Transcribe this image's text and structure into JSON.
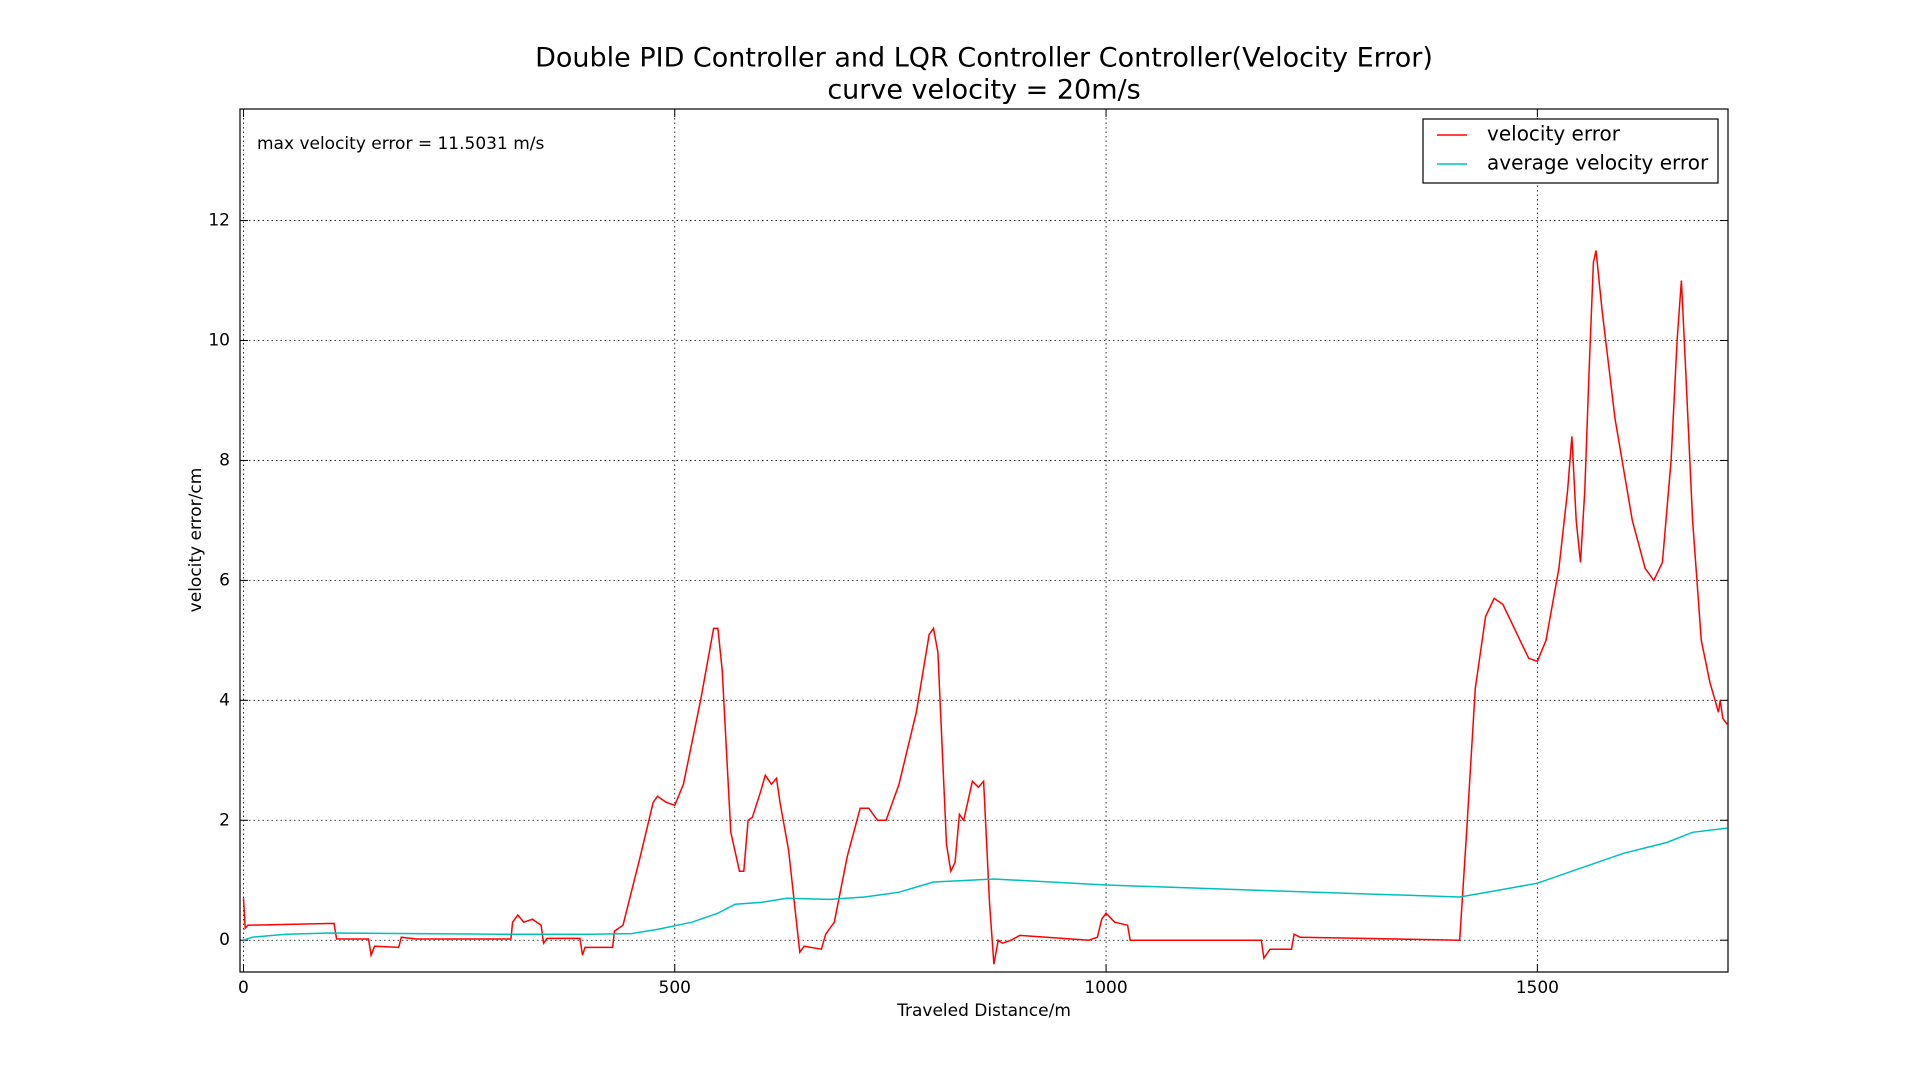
{
  "chart_data": {
    "type": "line",
    "title": "Double PID Controller and LQR Controller Controller(Velocity Error)",
    "subtitle": "curve velocity = 20m/s",
    "x_label": "Traveled Distance/m",
    "y_label": "velocity error/cm",
    "annotation": "max velocity error = 11.5031 m/s",
    "xlim": [
      -4,
      1721
    ],
    "ylim": [
      -0.53,
      13.86
    ],
    "xticks": [
      0,
      500,
      1000,
      1500
    ],
    "yticks": [
      0,
      2,
      4,
      6,
      8,
      10,
      12
    ],
    "grid": true,
    "legend": "upper right",
    "series": [
      {
        "name": "velocity error",
        "color": "#ff0000",
        "x": [
          0,
          2,
          5,
          105,
          108,
          145,
          148,
          152,
          180,
          183,
          200,
          310,
          312,
          318,
          325,
          335,
          345,
          348,
          352,
          390,
          393,
          396,
          428,
          430,
          440,
          460,
          475,
          480,
          490,
          500,
          510,
          530,
          545,
          550,
          555,
          565,
          575,
          580,
          585,
          590,
          600,
          605,
          612,
          618,
          622,
          632,
          645,
          650,
          670,
          675,
          685,
          700,
          715,
          725,
          735,
          745,
          760,
          780,
          795,
          800,
          805,
          815,
          820,
          825,
          830,
          835,
          845,
          852,
          858,
          865,
          870,
          875,
          880,
          890,
          900,
          960,
          980,
          990,
          995,
          1000,
          1010,
          1025,
          1028,
          1090,
          1180,
          1183,
          1190,
          1215,
          1218,
          1225,
          1410,
          1418,
          1428,
          1440,
          1450,
          1460,
          1480,
          1490,
          1500,
          1510,
          1525,
          1535,
          1540,
          1545,
          1550,
          1555,
          1560,
          1565,
          1568,
          1575,
          1590,
          1610,
          1625,
          1635,
          1645,
          1655,
          1662,
          1667,
          1672,
          1680,
          1690,
          1700,
          1710,
          1712,
          1715,
          1720
        ],
        "values": [
          0.7,
          0.2,
          0.25,
          0.28,
          0.02,
          0.02,
          -0.25,
          -0.1,
          -0.12,
          0.05,
          0.02,
          0.02,
          0.3,
          0.42,
          0.3,
          0.35,
          0.25,
          -0.05,
          0.03,
          0.03,
          -0.25,
          -0.12,
          -0.12,
          0.15,
          0.25,
          1.4,
          2.3,
          2.4,
          2.3,
          2.25,
          2.6,
          4.0,
          5.2,
          5.2,
          4.5,
          1.8,
          1.15,
          1.15,
          2.0,
          2.05,
          2.5,
          2.75,
          2.6,
          2.7,
          2.3,
          1.5,
          -0.2,
          -0.1,
          -0.15,
          0.1,
          0.3,
          1.4,
          2.2,
          2.2,
          2.0,
          2.0,
          2.6,
          3.8,
          5.1,
          5.2,
          4.8,
          1.6,
          1.15,
          1.3,
          2.1,
          2.0,
          2.65,
          2.55,
          2.65,
          0.6,
          -0.4,
          0.0,
          -0.05,
          0.0,
          0.08,
          0.02,
          0.0,
          0.05,
          0.35,
          0.45,
          0.3,
          0.25,
          0.0,
          0.0,
          0.0,
          -0.3,
          -0.15,
          -0.15,
          0.1,
          0.05,
          0.0,
          1.8,
          4.2,
          5.4,
          5.7,
          5.6,
          5.0,
          4.7,
          4.65,
          5.0,
          6.2,
          7.5,
          8.4,
          7.0,
          6.3,
          7.5,
          9.5,
          11.3,
          11.5,
          10.5,
          8.7,
          7.0,
          6.2,
          6.0,
          6.3,
          8.0,
          10.0,
          11.0,
          9.5,
          7.0,
          5.0,
          4.3,
          3.8,
          4.0,
          3.7,
          3.6
        ]
      },
      {
        "name": "average velocity error",
        "color": "#00bfbf",
        "x": [
          0,
          10,
          50,
          100,
          200,
          300,
          400,
          450,
          480,
          520,
          550,
          570,
          600,
          630,
          680,
          720,
          760,
          800,
          830,
          870,
          1000,
          1200,
          1410,
          1450,
          1500,
          1550,
          1600,
          1650,
          1680,
          1720
        ],
        "values": [
          0.0,
          0.05,
          0.1,
          0.12,
          0.11,
          0.1,
          0.1,
          0.11,
          0.18,
          0.3,
          0.45,
          0.6,
          0.63,
          0.7,
          0.68,
          0.72,
          0.8,
          0.97,
          0.99,
          1.02,
          0.92,
          0.82,
          0.72,
          0.82,
          0.95,
          1.2,
          1.45,
          1.63,
          1.8,
          1.87
        ]
      }
    ]
  }
}
